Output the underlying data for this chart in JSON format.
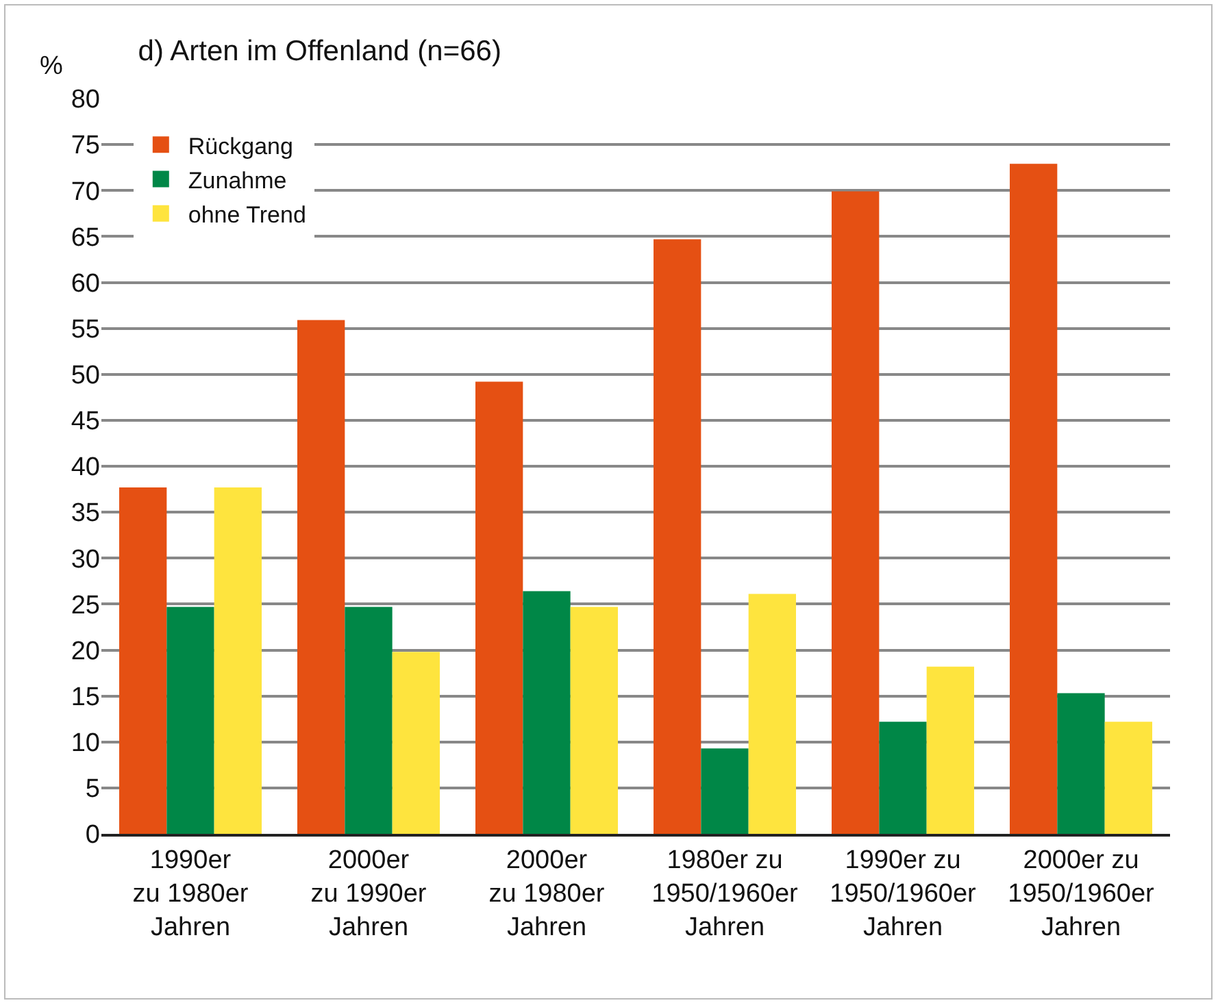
{
  "chart_data": {
    "type": "bar",
    "title": "d) Arten im Offenland (n=66)",
    "ylabel": "%",
    "categories": [
      "1990er\nzu 1980er\nJahren",
      "2000er\nzu 1990er\nJahren",
      "2000er\nzu 1980er\nJahren",
      "1980er zu\n1950/1960er\nJahren",
      "1990er zu\n1950/1960er\nJahren",
      "2000er zu\n1950/1960er\nJahren"
    ],
    "series": [
      {
        "name": "Rückgang",
        "color": "#e55013",
        "values": [
          37.7,
          55.9,
          49.2,
          64.7,
          69.9,
          72.9
        ]
      },
      {
        "name": "Zunahme",
        "color": "#008747",
        "values": [
          24.7,
          24.7,
          26.4,
          9.3,
          12.2,
          15.3
        ]
      },
      {
        "name": "ohne Trend",
        "color": "#fee43e",
        "values": [
          37.7,
          19.8,
          24.7,
          26.1,
          18.2,
          12.2
        ]
      }
    ],
    "ylim": [
      0,
      80
    ],
    "yticks": [
      0,
      5,
      10,
      15,
      20,
      25,
      30,
      35,
      40,
      45,
      50,
      55,
      60,
      65,
      70,
      75,
      80
    ],
    "grid": "y",
    "legend": "top left"
  }
}
